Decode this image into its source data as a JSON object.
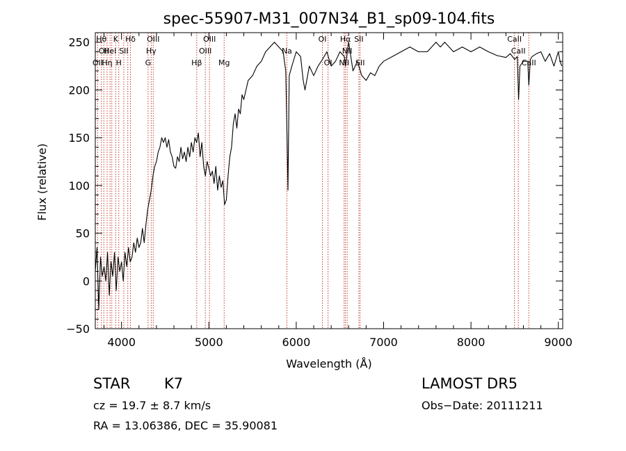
{
  "chart_data": {
    "type": "line",
    "title": "spec-55907-M31_007N34_B1_sp09-104.fits",
    "xlabel": "Wavelength (Å)",
    "ylabel": "Flux (relative)",
    "xlim": [
      3700,
      9050
    ],
    "ylim": [
      -50,
      260
    ],
    "xticks": [
      4000,
      5000,
      6000,
      7000,
      8000,
      9000
    ],
    "yticks": [
      -50,
      0,
      50,
      100,
      150,
      200,
      250
    ],
    "grid": false,
    "series": [
      {
        "x": [
          3700,
          3720,
          3740,
          3760,
          3780,
          3800,
          3820,
          3840,
          3860,
          3880,
          3900,
          3920,
          3940,
          3960,
          3980,
          4000,
          4020,
          4040,
          4060,
          4080,
          4100,
          4120,
          4140,
          4160,
          4180,
          4200,
          4220,
          4240,
          4260,
          4280,
          4300,
          4320,
          4340,
          4360,
          4380,
          4400,
          4420,
          4440,
          4460,
          4480,
          4500,
          4520,
          4540,
          4560,
          4580,
          4600,
          4620,
          4640,
          4660,
          4680,
          4700,
          4720,
          4740,
          4760,
          4780,
          4800,
          4820,
          4840,
          4860,
          4880,
          4900,
          4920,
          4940,
          4960,
          4980,
          5000,
          5020,
          5040,
          5060,
          5080,
          5100,
          5120,
          5140,
          5160,
          5180,
          5200,
          5220,
          5240,
          5260,
          5280,
          5300,
          5320,
          5340,
          5360,
          5380,
          5400,
          5450,
          5500,
          5550,
          5600,
          5650,
          5700,
          5750,
          5800,
          5850,
          5880,
          5895,
          5905,
          5920,
          5950,
          6000,
          6050,
          6080,
          6100,
          6150,
          6200,
          6250,
          6300,
          6350,
          6400,
          6450,
          6500,
          6550,
          6563,
          6600,
          6650,
          6700,
          6750,
          6800,
          6850,
          6900,
          6950,
          7000,
          7100,
          7200,
          7300,
          7400,
          7500,
          7600,
          7650,
          7700,
          7800,
          7900,
          8000,
          8100,
          8200,
          8300,
          8400,
          8450,
          8500,
          8530,
          8545,
          8560,
          8600,
          8650,
          8662,
          8680,
          8700,
          8750,
          8800,
          8850,
          8900,
          8950,
          9000,
          9020,
          9040
        ],
        "y": [
          10,
          35,
          -30,
          25,
          5,
          15,
          0,
          30,
          -15,
          20,
          5,
          30,
          -10,
          25,
          10,
          20,
          0,
          30,
          15,
          35,
          20,
          25,
          40,
          30,
          45,
          35,
          40,
          55,
          40,
          60,
          75,
          85,
          95,
          110,
          120,
          125,
          135,
          140,
          150,
          145,
          150,
          140,
          148,
          135,
          130,
          120,
          118,
          130,
          125,
          140,
          128,
          135,
          125,
          140,
          130,
          145,
          135,
          150,
          145,
          155,
          130,
          145,
          120,
          110,
          125,
          118,
          110,
          115,
          102,
          120,
          95,
          110,
          98,
          105,
          80,
          85,
          110,
          130,
          140,
          165,
          175,
          160,
          180,
          175,
          195,
          190,
          210,
          215,
          225,
          230,
          240,
          245,
          250,
          245,
          240,
          220,
          150,
          95,
          215,
          225,
          240,
          235,
          210,
          200,
          225,
          215,
          225,
          232,
          240,
          225,
          230,
          240,
          235,
          225,
          250,
          220,
          230,
          215,
          210,
          218,
          215,
          225,
          230,
          235,
          240,
          245,
          240,
          240,
          250,
          245,
          250,
          240,
          245,
          240,
          245,
          240,
          236,
          234,
          238,
          232,
          235,
          190,
          225,
          230,
          230,
          205,
          232,
          235,
          238,
          240,
          230,
          238,
          225,
          240,
          230,
          225
        ]
      }
    ],
    "lines": [
      {
        "x": 3727,
        "label": "OII",
        "row": 2
      },
      {
        "x": 3770,
        "label": "Hθ",
        "row": 0
      },
      {
        "x": 3798,
        "label": "OII",
        "row": 1
      },
      {
        "x": 3835,
        "label": "Hη",
        "row": 2
      },
      {
        "x": 3869,
        "label": "HeI",
        "row": 1
      },
      {
        "x": 3889,
        "label": "",
        "row": 0
      },
      {
        "x": 3934,
        "label": "K",
        "row": 0
      },
      {
        "x": 3969,
        "label": "H",
        "row": 2
      },
      {
        "x": 4026,
        "label": "SII",
        "row": 1
      },
      {
        "x": 4072,
        "label": "",
        "row": 0
      },
      {
        "x": 4102,
        "label": "Hδ",
        "row": 0
      },
      {
        "x": 4304,
        "label": "G",
        "row": 2
      },
      {
        "x": 4340,
        "label": "Hγ",
        "row": 1
      },
      {
        "x": 4363,
        "label": "OIII",
        "row": 0
      },
      {
        "x": 4861,
        "label": "Hβ",
        "row": 2
      },
      {
        "x": 4959,
        "label": "OIII",
        "row": 1
      },
      {
        "x": 5007,
        "label": "OIII",
        "row": 0
      },
      {
        "x": 5175,
        "label": "Mg",
        "row": 2
      },
      {
        "x": 5893,
        "label": "Na",
        "row": 1
      },
      {
        "x": 6300,
        "label": "OI",
        "row": 0
      },
      {
        "x": 6364,
        "label": "OI",
        "row": 2
      },
      {
        "x": 6548,
        "label": "NII",
        "row": 2
      },
      {
        "x": 6563,
        "label": "Hα",
        "row": 0
      },
      {
        "x": 6583,
        "label": "NII",
        "row": 1
      },
      {
        "x": 6717,
        "label": "SII",
        "row": 0
      },
      {
        "x": 6731,
        "label": "SII",
        "row": 2
      },
      {
        "x": 8498,
        "label": "CaII",
        "row": 0
      },
      {
        "x": 8542,
        "label": "CaII",
        "row": 1
      },
      {
        "x": 8662,
        "label": "CaII",
        "row": 2
      }
    ]
  },
  "info": {
    "class": "STAR",
    "subclass": "K7",
    "survey": "LAMOST  DR5",
    "cz": "cz = 19.7 ± 8.7 km/s",
    "obsdate": "Obs−Date: 20111211",
    "radec": "RA =  13.06386, DEC =  35.90081"
  }
}
